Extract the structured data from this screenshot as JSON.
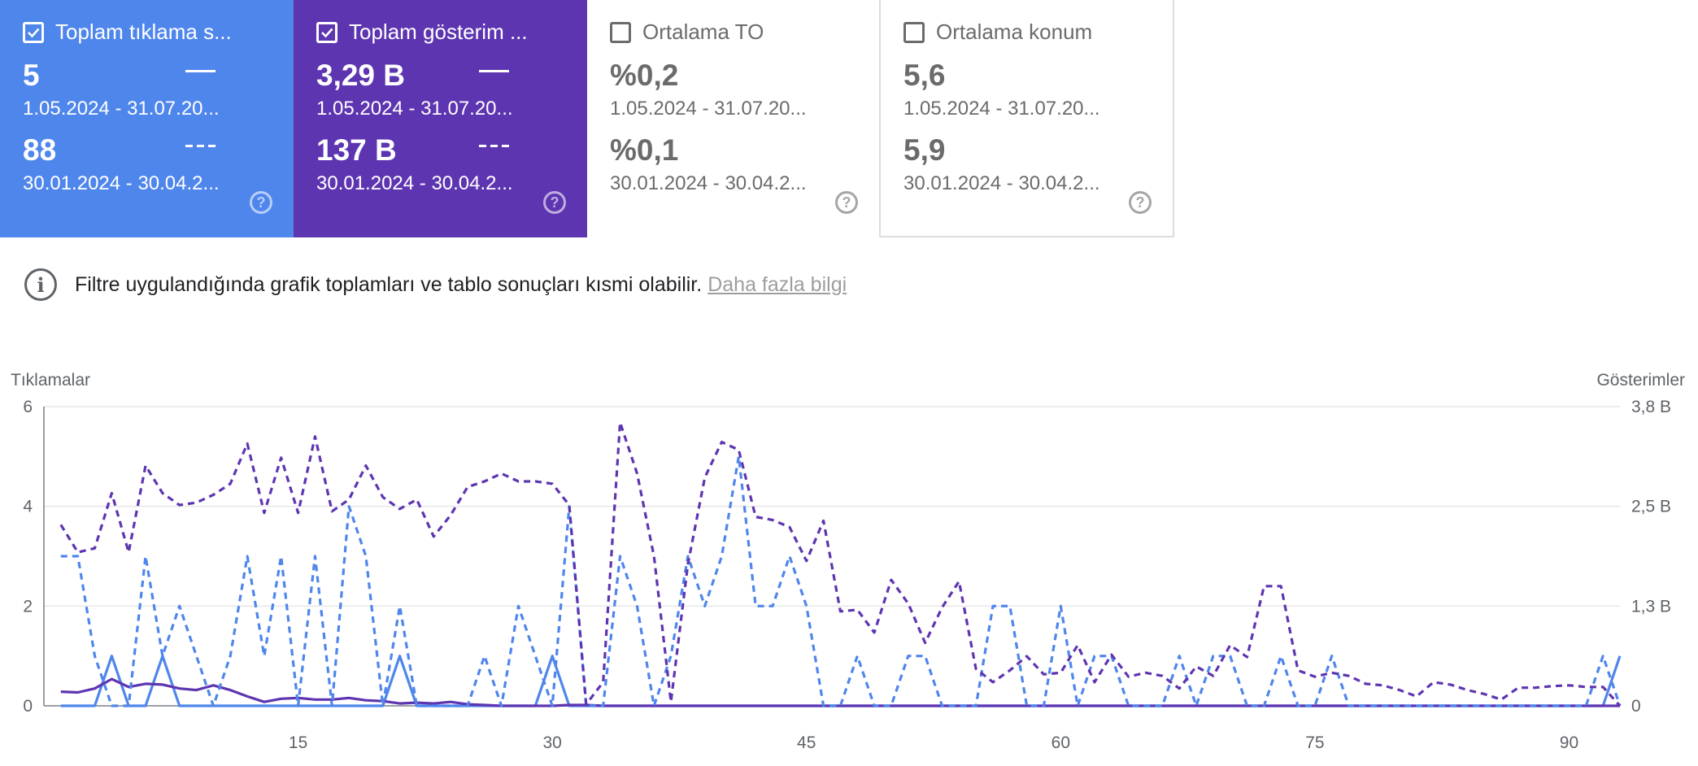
{
  "cards": [
    {
      "title": "Toplam tıklama s...",
      "checked": true,
      "value1": "5",
      "range1": "1.05.2024 - 31.07.20...",
      "value2": "88",
      "range2": "30.01.2024 - 30.04.2...",
      "help": "?"
    },
    {
      "title": "Toplam gösterim ...",
      "checked": true,
      "value1": "3,29 B",
      "range1": "1.05.2024 - 31.07.20...",
      "value2": "137 B",
      "range2": "30.01.2024 - 30.04.2...",
      "help": "?"
    },
    {
      "title": "Ortalama TO",
      "checked": false,
      "value1": "%0,2",
      "range1": "1.05.2024 - 31.07.20...",
      "value2": "%0,1",
      "range2": "30.01.2024 - 30.04.2...",
      "help": "?"
    },
    {
      "title": "Ortalama konum",
      "checked": false,
      "value1": "5,6",
      "range1": "1.05.2024 - 31.07.20...",
      "value2": "5,9",
      "range2": "30.01.2024 - 30.04.2...",
      "help": "?"
    }
  ],
  "notice": {
    "icon": "info-icon",
    "text": "Filtre uygulandığında grafik toplamları ve tablo sonuçları kısmi olabilir.",
    "link": "Daha fazla bilgi"
  },
  "colors": {
    "clicks": "#4f86ec",
    "impressions": "#5e35b1"
  },
  "chart_data": {
    "type": "line",
    "left_axis_title": "Tıklamalar",
    "right_axis_title": "Gösterimler",
    "left_ticks": [
      "0",
      "2",
      "4",
      "6"
    ],
    "right_ticks": [
      "0",
      "1,3 B",
      "2,5 B",
      "3,8 B"
    ],
    "x_ticks": [
      "15",
      "30",
      "45",
      "60",
      "75",
      "90"
    ],
    "x_range": [
      0,
      93
    ],
    "left_ylim": [
      0,
      6
    ],
    "right_ylim": [
      0,
      3.8
    ],
    "grid": true,
    "series": [
      {
        "axis": "left",
        "style": "solid",
        "color": "#4f86ec",
        "values": [
          0,
          0,
          0,
          1,
          0,
          0,
          1,
          0,
          0,
          0,
          0,
          0,
          0,
          0,
          0,
          0,
          0,
          0,
          0,
          0,
          1,
          0,
          0,
          0,
          0,
          0,
          0,
          0,
          0,
          1,
          0,
          0,
          0,
          0,
          0,
          0,
          0,
          0,
          0,
          0,
          0,
          0,
          0,
          0,
          0,
          0,
          0,
          0,
          0,
          0,
          0,
          0,
          0,
          0,
          0,
          0,
          0,
          0,
          0,
          0,
          0,
          0,
          0,
          0,
          0,
          0,
          0,
          0,
          0,
          0,
          0,
          0,
          0,
          0,
          0,
          0,
          0,
          0,
          0,
          0,
          0,
          0,
          0,
          0,
          0,
          0,
          0,
          0,
          0,
          0,
          0,
          0,
          1
        ]
      },
      {
        "axis": "right",
        "style": "solid",
        "color": "#5e35b1",
        "values": [
          0.18,
          0.17,
          0.22,
          0.34,
          0.24,
          0.28,
          0.27,
          0.22,
          0.2,
          0.26,
          0.2,
          0.12,
          0.05,
          0.09,
          0.1,
          0.08,
          0.08,
          0.1,
          0.07,
          0.06,
          0.03,
          0.04,
          0.03,
          0.05,
          0.02,
          0.01,
          0,
          0,
          0,
          0,
          0.01,
          0.01,
          0,
          0,
          0,
          0,
          0,
          0,
          0,
          0,
          0,
          0,
          0,
          0,
          0,
          0,
          0,
          0,
          0,
          0,
          0,
          0,
          0,
          0,
          0,
          0,
          0,
          0,
          0,
          0,
          0,
          0,
          0,
          0,
          0,
          0,
          0,
          0,
          0,
          0,
          0,
          0,
          0,
          0,
          0,
          0,
          0,
          0,
          0,
          0,
          0,
          0,
          0,
          0,
          0,
          0,
          0,
          0,
          0,
          0,
          0,
          0,
          0
        ]
      },
      {
        "axis": "left",
        "style": "dashed",
        "color": "#4f86ec",
        "values": [
          3,
          3,
          1,
          0,
          0,
          3,
          1,
          2,
          1,
          0,
          1,
          3,
          1,
          3,
          0,
          3,
          0,
          4,
          3,
          0,
          2,
          0,
          0,
          0,
          0,
          1,
          0,
          2,
          1,
          0,
          4,
          0,
          0,
          3,
          2,
          0,
          1,
          3,
          2,
          3,
          5,
          2,
          2,
          3,
          2,
          0,
          0,
          1,
          0,
          0,
          1,
          1,
          0,
          0,
          0,
          2,
          2,
          0,
          0,
          2,
          0,
          1,
          1,
          0,
          0,
          0,
          1,
          0,
          1,
          1,
          0,
          0,
          1,
          0,
          0,
          1,
          0,
          0,
          0,
          0,
          0,
          0,
          0,
          0,
          0,
          0,
          0,
          0,
          0,
          0,
          0,
          1,
          0
        ]
      },
      {
        "axis": "right",
        "style": "dashed",
        "color": "#5e35b1",
        "values": [
          2.3,
          1.95,
          2.0,
          2.7,
          1.95,
          3.05,
          2.7,
          2.55,
          2.58,
          2.68,
          2.82,
          3.33,
          2.45,
          3.15,
          2.45,
          3.42,
          2.47,
          2.62,
          3.05,
          2.65,
          2.5,
          2.62,
          2.15,
          2.42,
          2.78,
          2.85,
          2.95,
          2.85,
          2.85,
          2.82,
          2.55,
          0.02,
          0.3,
          3.6,
          2.95,
          1.9,
          0.05,
          1.8,
          2.9,
          3.35,
          3.25,
          2.4,
          2.36,
          2.27,
          1.84,
          2.35,
          1.2,
          1.22,
          0.93,
          1.6,
          1.3,
          0.8,
          1.25,
          1.58,
          0.47,
          0.3,
          0.45,
          0.63,
          0.4,
          0.42,
          0.77,
          0.3,
          0.65,
          0.37,
          0.42,
          0.38,
          0.22,
          0.5,
          0.38,
          0.77,
          0.62,
          1.52,
          1.52,
          0.45,
          0.37,
          0.42,
          0.38,
          0.28,
          0.26,
          0.2,
          0.12,
          0.3,
          0.27,
          0.2,
          0.15,
          0.08,
          0.23,
          0.23,
          0.25,
          0.26,
          0.24,
          0.24,
          0
        ]
      }
    ]
  }
}
